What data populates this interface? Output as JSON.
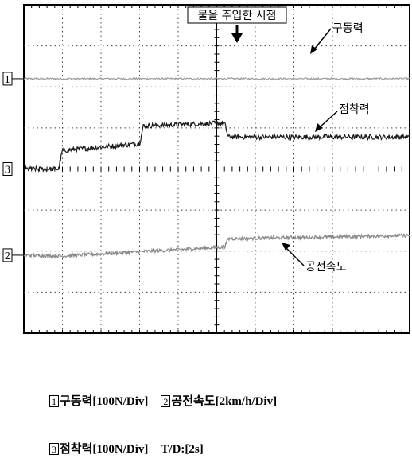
{
  "chart_data": {
    "type": "line",
    "grid": true,
    "divisions": {
      "x": 10,
      "y": 8
    },
    "annotations": {
      "marker": "물을 주입한 시점",
      "series_labels": [
        "구동력",
        "점착력",
        "공전속도"
      ]
    },
    "channel_markers": [
      "1",
      "3",
      "2"
    ],
    "series": [
      {
        "name": "구동력",
        "channel": "1",
        "level_div": 6.2,
        "noise": 0.02,
        "segments": [
          {
            "x0": 0,
            "x1": 10,
            "y0": 6.2,
            "y1": 6.2
          }
        ]
      },
      {
        "name": "점착력",
        "channel": "3",
        "level_div": 4.0,
        "noise": 0.06,
        "segments": [
          {
            "x0": 0,
            "x1": 0.9,
            "y0": 4.0,
            "y1": 4.0
          },
          {
            "x0": 0.9,
            "x1": 1.0,
            "y0": 4.0,
            "y1": 4.45
          },
          {
            "x0": 1.0,
            "x1": 3.0,
            "y0": 4.45,
            "y1": 4.62
          },
          {
            "x0": 3.0,
            "x1": 3.1,
            "y0": 4.62,
            "y1": 5.05
          },
          {
            "x0": 3.1,
            "x1": 5.2,
            "y0": 5.05,
            "y1": 5.12
          },
          {
            "x0": 5.2,
            "x1": 5.3,
            "y0": 5.12,
            "y1": 4.78
          },
          {
            "x0": 5.3,
            "x1": 10,
            "y0": 4.78,
            "y1": 4.78
          }
        ]
      },
      {
        "name": "공전속도",
        "channel": "2",
        "level_div": 1.9,
        "noise": 0.04,
        "segments": [
          {
            "x0": 0,
            "x1": 1.0,
            "y0": 1.9,
            "y1": 1.88
          },
          {
            "x0": 1.0,
            "x1": 5.2,
            "y0": 1.88,
            "y1": 2.1
          },
          {
            "x0": 5.2,
            "x1": 5.3,
            "y0": 2.1,
            "y1": 2.3
          },
          {
            "x0": 5.3,
            "x1": 10,
            "y0": 2.3,
            "y1": 2.38
          }
        ]
      }
    ]
  },
  "legend": [
    {
      "num": "1",
      "text": "구동력[100N/Div]"
    },
    {
      "num": "2",
      "text": "공전속도[2km/h/Div]"
    },
    {
      "num": "3",
      "text": "점착력[100N/Div]"
    },
    {
      "num": "",
      "text": "T/D:[2s]"
    }
  ]
}
